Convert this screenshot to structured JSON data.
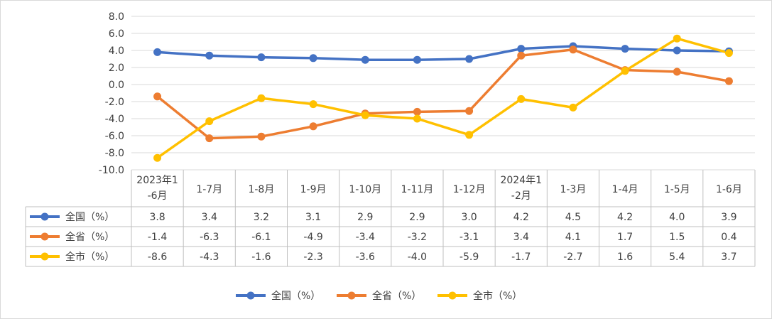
{
  "chart_data": {
    "type": "line",
    "title": "",
    "xlabel": "",
    "ylabel": "",
    "ylim": [
      -10,
      8
    ],
    "yticks": [
      "8.0",
      "6.0",
      "4.0",
      "2.0",
      "0.0",
      "-2.0",
      "-4.0",
      "-6.0",
      "-8.0",
      "-10.0"
    ],
    "yticks_values": [
      8,
      6,
      4,
      2,
      0,
      -2,
      -4,
      -6,
      -8,
      -10
    ],
    "grid": true,
    "legend_position": "bottom",
    "categories": [
      [
        "2023年1",
        "-6月"
      ],
      [
        "1-7月"
      ],
      [
        "1-8月"
      ],
      [
        "1-9月"
      ],
      [
        "1-10月"
      ],
      [
        "1-11月"
      ],
      [
        "1-12月"
      ],
      [
        "2024年1",
        "-2月"
      ],
      [
        "1-3月"
      ],
      [
        "1-4月"
      ],
      [
        "1-5月"
      ],
      [
        "1-6月"
      ]
    ],
    "series": [
      {
        "name": "全国（%）",
        "color": "#4472C4",
        "values": [
          3.8,
          3.4,
          3.2,
          3.1,
          2.9,
          2.9,
          3.0,
          4.2,
          4.5,
          4.2,
          4.0,
          3.9
        ],
        "labels": [
          "3.8",
          "3.4",
          "3.2",
          "3.1",
          "2.9",
          "2.9",
          "3.0",
          "4.2",
          "4.5",
          "4.2",
          "4.0",
          "3.9"
        ]
      },
      {
        "name": "全省（%）",
        "color": "#ED7D31",
        "values": [
          -1.4,
          -6.3,
          -6.1,
          -4.9,
          -3.4,
          -3.2,
          -3.1,
          3.4,
          4.1,
          1.7,
          1.5,
          0.4
        ],
        "labels": [
          "-1.4",
          "-6.3",
          "-6.1",
          "-4.9",
          "-3.4",
          "-3.2",
          "-3.1",
          "3.4",
          "4.1",
          "1.7",
          "1.5",
          "0.4"
        ]
      },
      {
        "name": "全市（%）",
        "color": "#FFC000",
        "values": [
          -8.6,
          -4.3,
          -1.6,
          -2.3,
          -3.6,
          -4.0,
          -5.9,
          -1.7,
          -2.7,
          1.6,
          5.4,
          3.7
        ],
        "labels": [
          "-8.6",
          "-4.3",
          "-1.6",
          "-2.3",
          "-3.6",
          "-4.0",
          "-5.9",
          "-1.7",
          "-2.7",
          "1.6",
          "5.4",
          "3.7"
        ]
      }
    ]
  }
}
